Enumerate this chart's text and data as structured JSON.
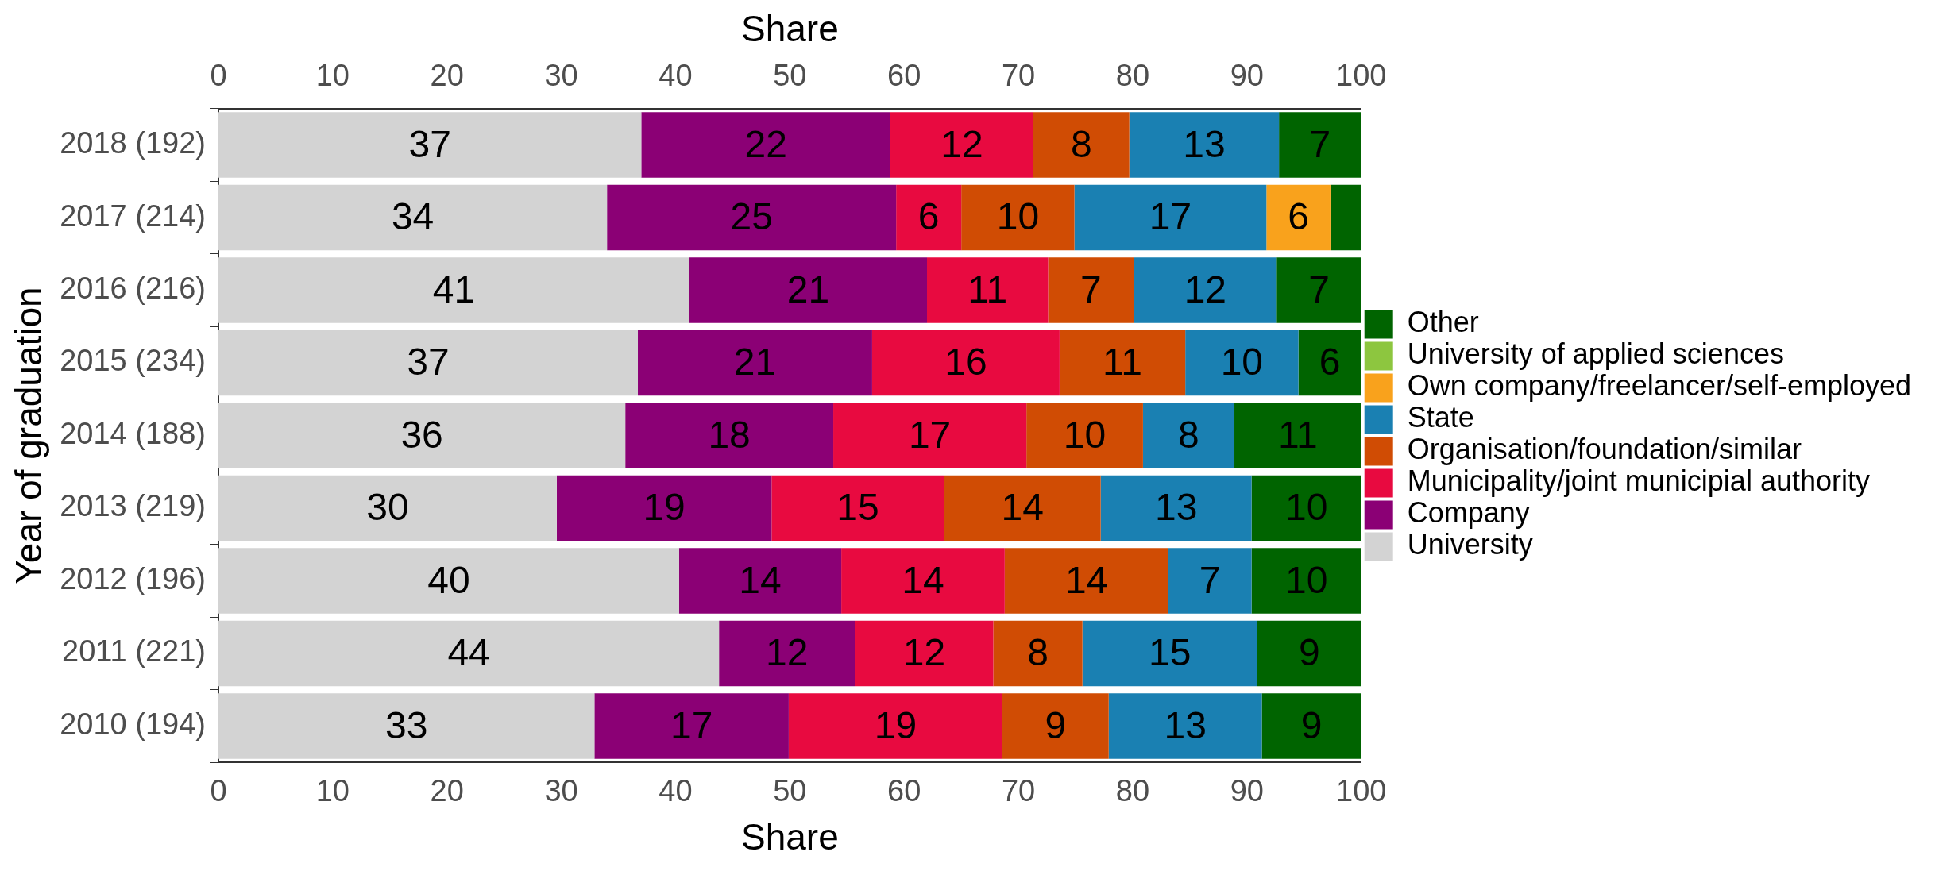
{
  "chart_data": {
    "type": "bar",
    "orientation": "horizontal",
    "stacked": true,
    "xlabel": "Share",
    "x2label": "Share",
    "ylabel": "Year of graduation",
    "categories": [
      "2018 (192)",
      "2017 (214)",
      "2016 (216)",
      "2015 (234)",
      "2014 (188)",
      "2013 (219)",
      "2012 (196)",
      "2011 (221)",
      "2010 (194)"
    ],
    "series": [
      {
        "name": "University",
        "color": "#d3d3d3",
        "values": [
          37.0,
          34.0,
          41.2,
          36.7,
          35.6,
          29.6,
          40.3,
          43.8,
          32.9
        ],
        "value_labels": [
          "37",
          "34",
          "41",
          "37",
          "36",
          "30",
          "40",
          "44",
          "33"
        ]
      },
      {
        "name": "Company",
        "color": "#8b0075",
        "values": [
          21.8,
          25.3,
          20.8,
          20.5,
          18.2,
          18.8,
          14.2,
          11.9,
          17.0
        ],
        "value_labels": [
          "22",
          "25",
          "21",
          "21",
          "18",
          "19",
          "14",
          "12",
          "17"
        ]
      },
      {
        "name": "Municipality/joint municipial authority",
        "color": "#e80a40",
        "values": [
          12.5,
          5.7,
          10.6,
          16.4,
          16.9,
          15.1,
          14.3,
          12.1,
          18.7
        ],
        "value_labels": [
          "12",
          "6",
          "11",
          "16",
          "17",
          "15",
          "14",
          "12",
          "19"
        ]
      },
      {
        "name": "Organisation/foundation/similar",
        "color": "#d04c04",
        "values": [
          8.4,
          9.9,
          7.5,
          11.0,
          10.2,
          13.7,
          14.3,
          7.8,
          9.3
        ],
        "value_labels": [
          "8",
          "10",
          "7",
          "11",
          "10",
          "14",
          "14",
          "8",
          "9"
        ]
      },
      {
        "name": "State",
        "color": "#1a80b2",
        "values": [
          13.1,
          16.8,
          12.5,
          9.9,
          8.0,
          13.2,
          7.3,
          15.3,
          13.4
        ],
        "value_labels": [
          "13",
          "17",
          "12",
          "10",
          "8",
          "13",
          "7",
          "15",
          "13"
        ]
      },
      {
        "name": "Own company/freelancer/self-employed",
        "color": "#f9a21c",
        "values": [
          0,
          5.6,
          0,
          0,
          0,
          0,
          0,
          0,
          0
        ],
        "value_labels": [
          null,
          "6",
          null,
          null,
          null,
          null,
          null,
          null,
          null
        ]
      },
      {
        "name": "University of applied sciences",
        "color": "#8dc63f",
        "values": [
          0,
          0,
          0,
          0,
          0,
          0,
          0,
          0,
          0
        ]
      },
      {
        "name": "Other",
        "color": "#006400",
        "values": [
          7.2,
          2.7,
          7.4,
          5.5,
          11.1,
          9.6,
          9.6,
          9.1,
          8.7
        ],
        "value_labels": [
          "7",
          null,
          "7",
          "6",
          "11",
          "10",
          "10",
          "9",
          "9"
        ]
      }
    ],
    "xlim": [
      0,
      100
    ],
    "xticks": [
      0,
      10,
      20,
      30,
      40,
      50,
      60,
      70,
      80,
      90,
      100
    ],
    "x2lim": [
      0,
      100
    ],
    "x2ticks": [
      0,
      10,
      20,
      30,
      40,
      50,
      60,
      70,
      80,
      90,
      100
    ],
    "legend": "right",
    "grid": false
  }
}
